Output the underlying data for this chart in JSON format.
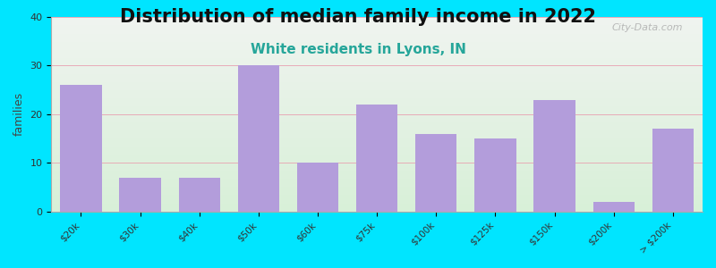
{
  "title": "Distribution of median family income in 2022",
  "subtitle": "White residents in Lyons, IN",
  "ylabel": "families",
  "categories": [
    "$20k",
    "$30k",
    "$40k",
    "$50k",
    "$60k",
    "$75k",
    "$100k",
    "$125k",
    "$150k",
    "$200k",
    "> $200k"
  ],
  "values": [
    26,
    7,
    7,
    30,
    10,
    22,
    16,
    15,
    23,
    2,
    17
  ],
  "bar_color": "#b39ddb",
  "bg_color": "#00e5ff",
  "plot_bg_top": "#f0f4f0",
  "plot_bg_bottom": "#d8f0d8",
  "ylim": [
    0,
    40
  ],
  "yticks": [
    0,
    10,
    20,
    30,
    40
  ],
  "title_fontsize": 15,
  "subtitle_fontsize": 11,
  "subtitle_color": "#26a69a",
  "ylabel_fontsize": 9,
  "watermark": "City-Data.com"
}
